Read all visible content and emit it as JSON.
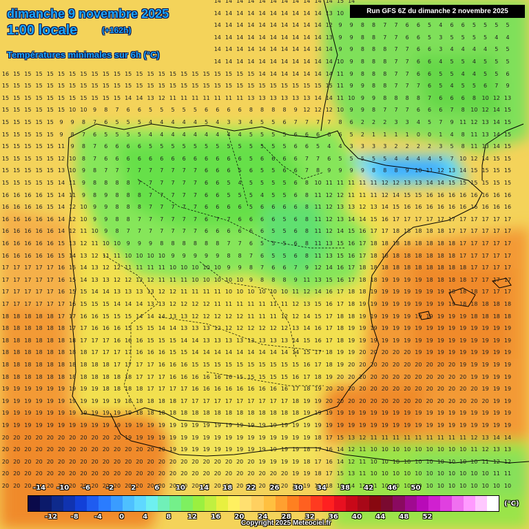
{
  "header": {
    "date": "dimanche 9 novembre 2025",
    "hour": "1:00 locale",
    "offset": "(+162h)",
    "parameter": "Températures minimales sur 6h (°C)"
  },
  "run_label": "Run GFS 6Z du dimanche 2 novembre 2025",
  "copyright": "Copyright 2025 Meteociel.fr",
  "legend": {
    "unit": "(°C)",
    "top_labels": [
      "-14",
      "-10",
      "-6",
      "-2",
      "2",
      "6",
      "10",
      "14",
      "18",
      "22",
      "26",
      "30",
      "34",
      "38",
      "42",
      "46",
      "50"
    ],
    "bottom_labels": [
      "-12",
      "-8",
      "-4",
      "0",
      "4",
      "8",
      "12",
      "16",
      "20",
      "24",
      "28",
      "32",
      "36",
      "40",
      "44",
      "48",
      "52"
    ],
    "colors": [
      "#0a0a4a",
      "#0b1a6a",
      "#0e2a8c",
      "#1033b0",
      "#1240d8",
      "#1f5cf0",
      "#2a7cff",
      "#3a9cff",
      "#4ec0ff",
      "#5fd8ff",
      "#6ef0f0",
      "#70f0b8",
      "#74f08a",
      "#7ef060",
      "#9af040",
      "#c0f040",
      "#e8f040",
      "#fff060",
      "#ffe070",
      "#ffd060",
      "#ffc040",
      "#ffa030",
      "#ff8020",
      "#ff6020",
      "#ff3a20",
      "#ff2020",
      "#e81020",
      "#c80818",
      "#a80818",
      "#880810",
      "#7a0a30",
      "#8a0a60",
      "#a00a90",
      "#b80ab8",
      "#d020d0",
      "#e040e0",
      "#f070f0",
      "#ff9aff",
      "#ffc8ff",
      "#ffffff"
    ]
  },
  "map_values": {
    "rows": [
      "15 15 15 15 15 15 15 15 15 15 15 15 15 15 15 15 15 14 14 14 14 14 14 14 14 14 14 14 14 14 15 14 9 9 8 8 8 7 6 6 6 5 6 6 6 6",
      "15 15 15 15 15 15 15 15 15 15 15 15 15 15 15 15 15 14 14 14 14 14 14 14 14 14 14 14 14 13 10 8 8 8 8 7 6 5 5 6 6 6 5 5 5 6",
      "15 15 15 15 15 15 15 15 15 15 15 15 15 15 15 15 15 14 14 14 14 14 14 14 14 14 14 14 14 12 9 9 8 8 7 7 6 6 5 4 6 6 5 5 5 5",
      "15 15 15 15 15 15 15 15 15 15 15 15 15 15 15 15 15 14 14 14 14 14 14 14 14 14 14 14 14 13 9 9 8 8 7 7 6 6 5 3 5 5 5 5 4 4",
      "15 15 15 15 15 15 15 15 15 15 15 15 15 15 15 15 15 14 14 14 14 14 14 14 14 14 14 14 14 14 9 9 8 8 8 7 7 6 6 3 4 4 4 4 5 5",
      "15 15 15 15 15 15 15 15 15 15 15 15 15 15 15 15 15 14 14 14 14 14 14 14 14 14 14 14 14 14 10 9 8 8 8 7 7 6 6 4 5 5 4 5 5 5",
      "16 15 15 15 15 15 15 15 15 15 15 15 15 15 15 15 15 15 15 15 15 15 15 14 14 14 14 14 14 14 11 9 8 8 8 7 7 6 6 5 5 4 4 5 5 6",
      "15 15 15 15 15 15 15 15 15 15 15 15 15 15 15 15 15 15 15 15 15 15 15 15 15 15 15 15 15 15 11 9 9 8 8 7 7 7 6 5 4 5 5 6 7 9",
      "15 15 15 15 15 15 15 15 15 15 15 14 14 13 12 11 11 11 11 11 11 11 13 13 13 13 13 13 14 14 11 10 9 9 8 8 8 8 7 6 6 6 8 10 12 13",
      "15 15 15 15 15 15 10 10 9 8 7 6 6 5 5 5 5 5 6 6 6 6 8 8 8 8 9 12 12 12 10 9 9 8 7 7 7 6 6 6 7 8 10 12 14 15",
      "15 15 15 15 15 9 9 8 7 6 5 5 5 4 4 4 4 4 5 4 3 3 4 5 5 6 7 7 7 7 8 6 2 2 2 3 3 4 5 7 9 11 12 13 14 15",
      "15 15 15 15 15 9 8 7 6 5 5 5 5 4 4 4 4 4 4 4 4 4 5 5 5 5 6 6 6 6 6 5 2 1 1 1 1 0 0 1 4 8 11 13 14 15",
      "15 15 15 15 15 11 9 8 7 6 6 6 6 5 5 5 5 5 5 5 5 5 5 5 5 5 6 6 5 4 4 3 3 3 3 2 2 2 2 3 5 8 11 13 14 15",
      "15 15 15 15 15 12 10 8 7 6 6 6 6 6 6 6 6 6 6 6 6 6 5 6 6 6 6 7 7 6 5 5 5 5 5 4 4 4 4 5 7 10 12 14 15 15",
      "15 15 15 15 15 13 10 9 8 7 7 7 7 7 7 7 7 7 6 6 6 5 6 5 5 6 6 7 8 9 9 9 9 8 8 8 9 10 11 12 13 14 15 15 15 15",
      "15 15 15 15 15 14 11 9 8 8 8 8 7 7 7 7 7 7 6 6 5 4 5 5 5 5 6 8 10 11 11 11 11 11 12 12 13 13 14 14 15 15 15 15 15 15",
      "16 16 16 16 15 14 11 9 8 9 8 8 8 7 7 7 7 7 6 6 5 5 5 4 5 5 6 8 11 12 12 11 11 11 12 14 15 15 16 16 16 16 16 16 16 16",
      "16 16 16 16 15 14 12 10 9 9 8 8 8 7 7 7 7 7 6 6 6 6 5 6 6 6 6 8 11 12 13 13 12 13 14 15 16 16 16 16 16 16 16 16 16 16",
      "16 16 16 16 16 14 12 10 9 9 8 8 7 7 7 7 7 7 6 7 7 6 6 6 6 5 6 8 11 12 13 14 14 15 16 17 17 17 17 17 17 17 17 17 17 17",
      "16 16 16 16 16 14 12 11 10 9 8 7 7 7 7 7 7 7 6 6 6 6 6 6 5 5 6 8 11 12 14 15 16 17 17 18 18 18 18 18 17 17 17 17 17 17",
      "16 16 16 16 16 15 13 12 11 10 10 9 9 9 8 8 8 8 8 8 7 7 6 5 5 5 6 8 11 13 15 16 17 18 18 18 18 18 18 18 18 17 17 17 17 17",
      "16 16 16 16 16 15 14 13 12 11 11 10 10 10 10 9 9 9 9 9 8 8 7 6 5 5 6 8 11 13 15 16 17 18 18 18 18 18 18 18 18 17 17 17 17 17",
      "17 17 17 17 17 16 15 14 13 12 12 11 11 11 11 10 10 10 10 10 9 9 8 7 6 6 7 9 12 14 16 17 18 18 18 18 18 18 18 18 18 18 17 17 17 17",
      "17 17 17 17 17 16 15 14 13 13 12 12 12 12 11 11 11 10 10 10 10 10 9 8 8 8 9 11 13 15 16 17 18 18 19 19 19 19 18 18 18 18 17 17 17 17",
      "17 17 17 17 17 16 15 15 14 14 13 13 13 13 12 12 11 11 11 11 10 10 10 10 10 10 11 12 14 16 17 18 18 19 19 19 19 19 19 19 18 18 18 17 17 17",
      "17 17 17 17 17 17 16 15 15 15 14 14 14 13 13 12 12 12 12 11 11 11 11 11 11 11 12 13 15 16 17 18 19 19 19 19 19 19 19 19 19 18 18 18 18 18",
      "18 18 18 18 18 17 17 16 16 15 15 15 14 14 14 13 13 12 12 12 12 12 11 11 11 12 12 14 15 17 18 18 19 19 19 19 19 19 19 19 19 19 18 18 18 18",
      "18 18 18 18 18 18 17 17 16 16 16 15 15 15 14 14 13 13 13 12 12 12 12 12 12 12 13 14 16 17 18 19 19 19 19 19 19 19 19 19 19 19 19 19 19 19",
      "18 18 18 18 18 18 18 17 17 17 16 16 16 15 15 15 14 14 13 13 13 13 13 13 13 13 14 15 16 17 18 19 19 19 19 19 19 19 19 19 19 19 19 19 19 19",
      "18 18 18 18 18 18 18 18 17 17 17 17 16 16 16 15 15 14 14 14 14 14 14 14 14 14 14 15 17 18 19 19 20 20 20 20 20 19 19 19 19 19 19 19 19 19",
      "18 18 18 18 18 18 18 18 18 18 17 17 17 17 16 16 16 15 15 15 15 15 15 15 15 15 15 16 17 18 19 20 20 20 20 20 20 20 20 20 20 19 19 19 19 19",
      "18 18 18 18 18 18 18 18 18 18 18 18 17 17 17 16 16 16 16 16 16 15 15 15 15 15 16 17 18 19 20 20 20 20 20 20 20 20 20 20 20 20 19 19 19 19",
      "19 19 19 19 19 19 19 19 19 18 18 18 18 17 17 17 17 16 16 16 16 16 16 16 16 16 17 18 19 20 20 20 20 20 20 20 20 20 20 20 20 20 20 19 19 19",
      "19 19 19 19 19 19 19 19 19 19 19 18 18 18 18 18 17 17 17 17 17 17 17 17 17 17 18 19 19 20 20 20 20 20 20 20 20 20 20 20 20 20 20 20 19 19",
      "19 19 19 19 19 19 19 19 19 19 19 19 18 18 18 18 18 18 18 18 18 18 18 18 18 18 18 19 19 19 19 19 19 19 19 19 19 19 19 19 19 19 19 19 19 19",
      "19 19 19 19 19 19 19 19 19 19 19 19 19 19 19 19 19 19 19 19 19 19 19 19 19 19 19 19 19 19 19 19 19 19 19 19 19 19 19 19 19 19 19 19 19 19",
      "20 20 20 20 20 20 20 20 20 20 20 19 19 19 19 19 19 19 19 19 19 19 19 19 19 19 19 19 18 17 15 13 12 11 11 11 11 11 11 11 11 11 12 13 14 14",
      "20 20 20 20 20 20 20 20 20 20 20 20 20 20 20 19 19 19 19 19 19 19 19 19 19 19 19 18 17 16 14 12 11 10 10 10 10 10 10 10 10 10 11 12 13 13",
      "20 20 20 20 20 20 20 20 20 20 20 20 20 20 20 20 20 20 20 20 20 20 20 19 19 19 19 18 17 16 14 12 11 10 10 10 10 10 10 10 10 10 10 11 12 12",
      "20 20 20 20 20 20 20 20 20 20 20 20 20 20 20 20 20 20 20 20 20 20 20 20 20 20 19 19 18 17 15 13 11 10 10 10 10 10 10 10 10 10 10 10 11 11",
      "20 20 20 20 20 20 20 20 20 20 20 20 20 20 20 20 20 20 20 20 20 20 20 20 20 20 20 19 19 18 16 14 12 11 10 10 10 10 10 10 10 10 10 10 10 10",
      "20 20 20 20 20 20 20 20 20 20 20 20 20 20 20 20 20 20 20 20 20 20 20 20 20 20 20 20 19 19 17 15 13 12 11 11 11 10 10 10 10 10 10 10 10 10",
      "20 20 20 20 20 20 20 20 20 20 20 20 20 20 20 20 20 20 20 20 20 20 20 20 20 20 20 20 20 19 18 16 14 13 12 12 11 11 11 11 10 10 10 10 10 10"
    ]
  }
}
